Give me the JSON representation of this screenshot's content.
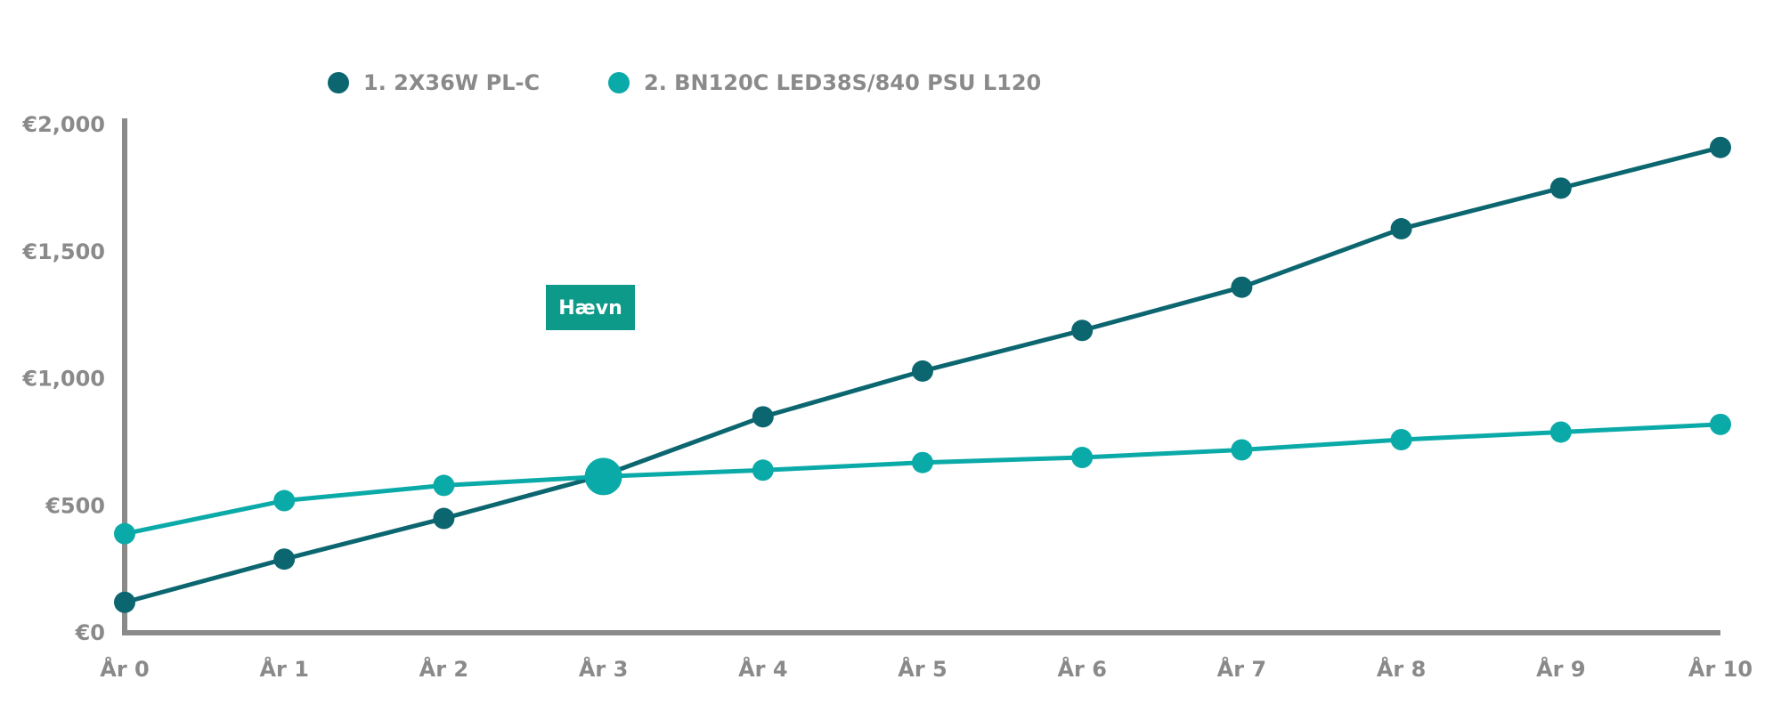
{
  "chart_data": {
    "type": "line",
    "title": "",
    "xlabel": "",
    "ylabel": "",
    "categories": [
      "År 0",
      "År 1",
      "År 2",
      "År 3",
      "År 4",
      "År 5",
      "År 6",
      "År 7",
      "År 8",
      "År 9",
      "År 10"
    ],
    "y_ticks": [
      {
        "value": 0,
        "label": "€0"
      },
      {
        "value": 500,
        "label": "€500"
      },
      {
        "value": 1000,
        "label": "€1,000"
      },
      {
        "value": 1500,
        "label": "€1,500"
      },
      {
        "value": 2000,
        "label": "€2,000"
      }
    ],
    "ylim": [
      0,
      2000
    ],
    "grid": false,
    "legend_placement": "top-left",
    "series": [
      {
        "name": "1. 2X36W PL-C",
        "color": "#0b6670",
        "values": [
          120,
          290,
          450,
          620,
          850,
          1030,
          1190,
          1360,
          1590,
          1750,
          1910
        ]
      },
      {
        "name": "2. BN120C LED38S/840 PSU L120",
        "color": "#0aaaa8",
        "values": [
          390,
          520,
          580,
          615,
          640,
          670,
          690,
          720,
          760,
          790,
          820
        ]
      }
    ],
    "annotations": [
      {
        "text": "Hævn",
        "x_category": "År 3",
        "color": "#0d9a88"
      }
    ],
    "breakeven_category": "År 3"
  }
}
